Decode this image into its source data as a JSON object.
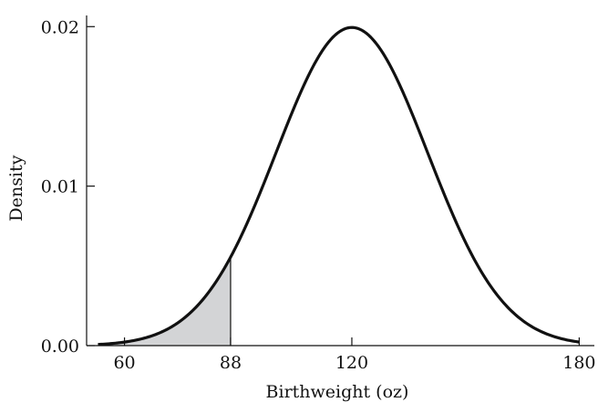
{
  "chart_data": {
    "type": "area",
    "xlabel": "Birthweight (oz)",
    "ylabel": "Density",
    "xlim": [
      50,
      184
    ],
    "ylim": [
      0,
      0.0207
    ],
    "x_ticks": [
      {
        "value": 60,
        "label": "60"
      },
      {
        "value": 88,
        "label": "88"
      },
      {
        "value": 120,
        "label": "120"
      },
      {
        "value": 180,
        "label": "180"
      }
    ],
    "y_ticks": [
      {
        "value": 0,
        "label": "0.00"
      },
      {
        "value": 0.01,
        "label": "0.01"
      },
      {
        "value": 0.02,
        "label": "0.02"
      }
    ],
    "distribution": {
      "kind": "normal",
      "mean": 120,
      "sd": 20,
      "x_start": 53,
      "x_end": 180
    },
    "shaded_region": {
      "from": 53,
      "to": 88,
      "color": "#d3d4d6"
    },
    "grid": false,
    "legend": "none",
    "curve_color": "#111111"
  }
}
